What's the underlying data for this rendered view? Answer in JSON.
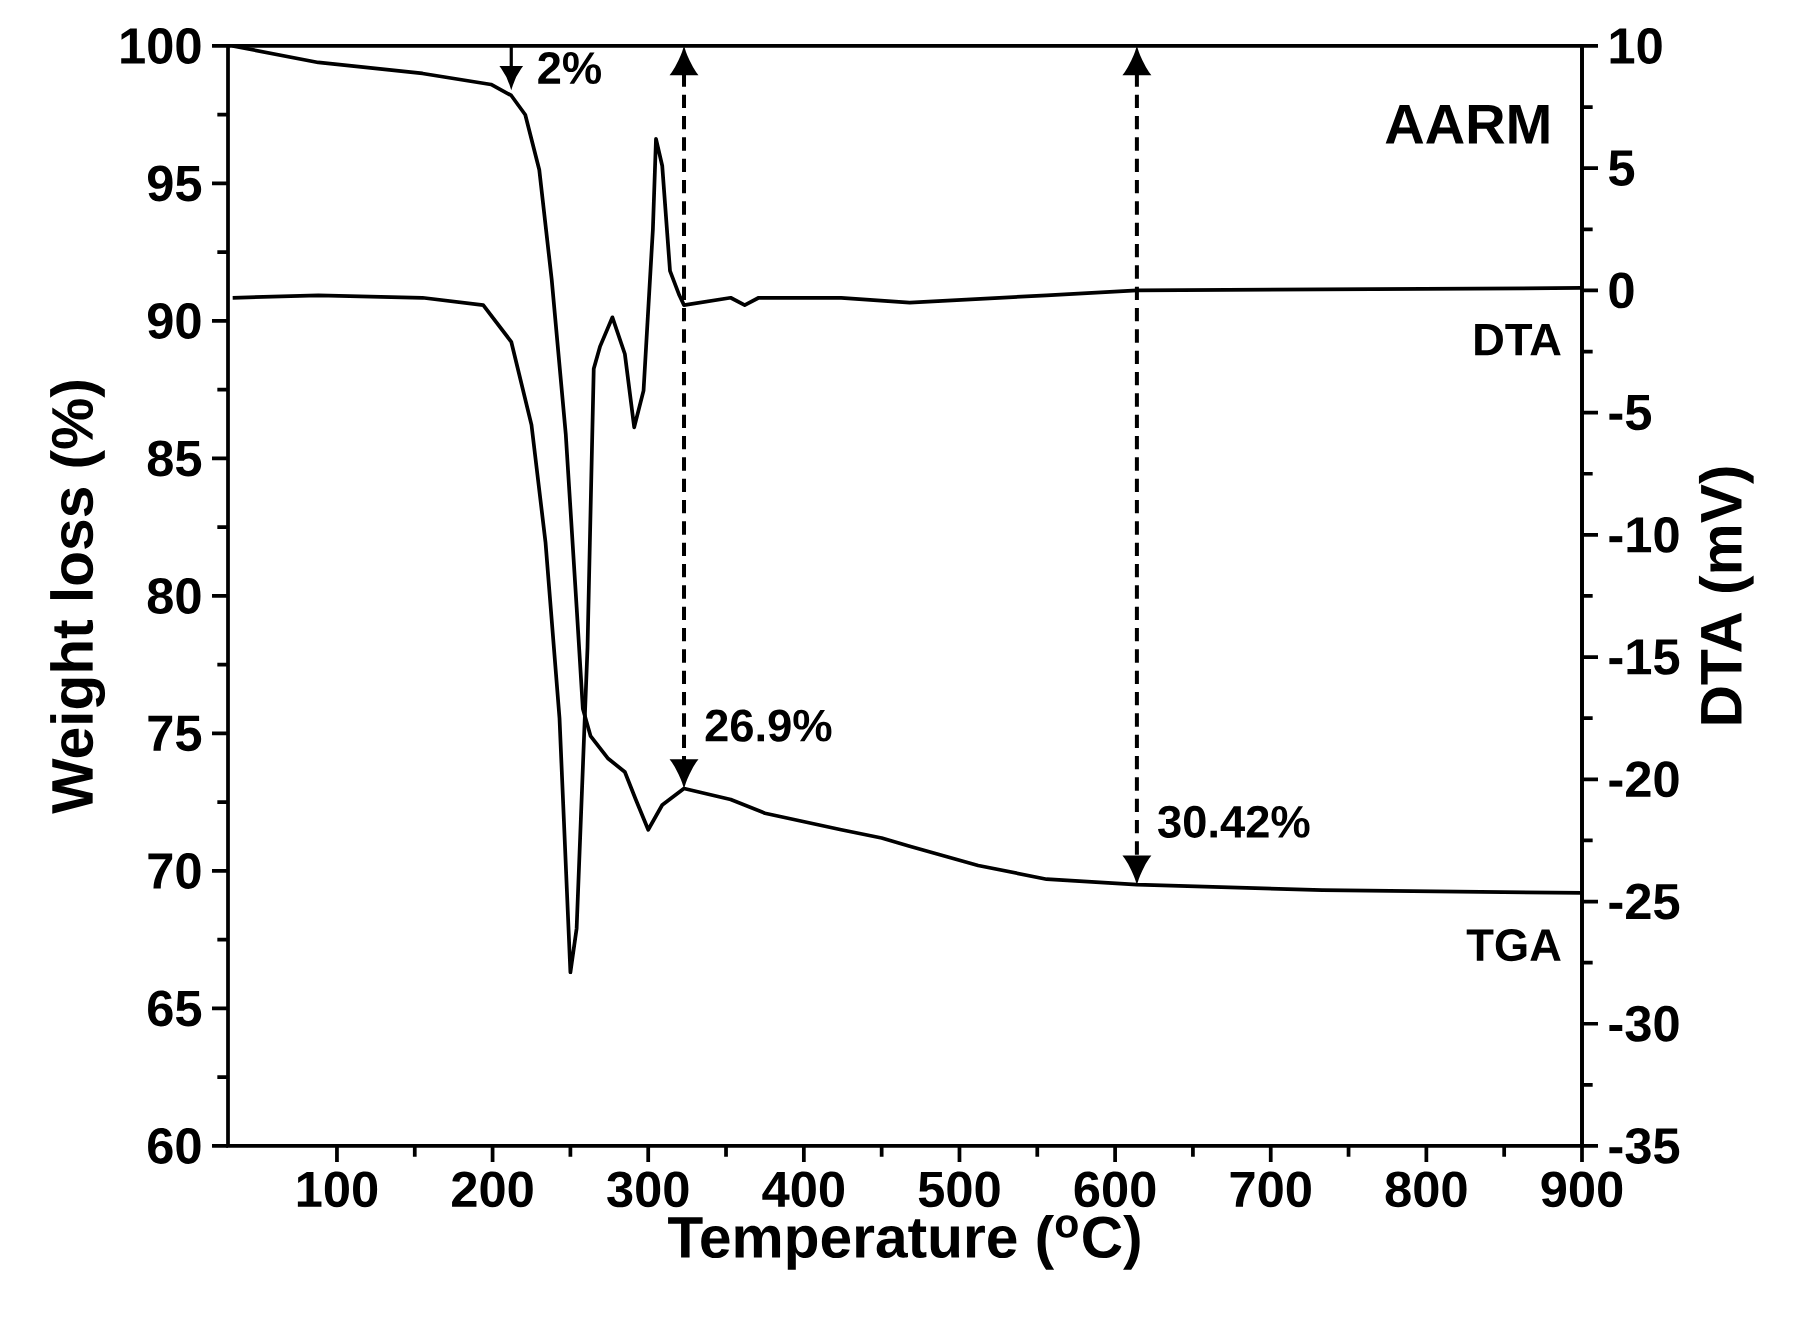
{
  "chart_data": {
    "type": "line",
    "xlabel": "Temperature ($^{o}$C)",
    "ylabel": "Weight loss (%)",
    "y2label": "DTA (mV)",
    "xlim": [
      30,
      900
    ],
    "xticks": [
      100,
      200,
      300,
      400,
      500,
      600,
      700,
      800,
      900
    ],
    "ylim": [
      60,
      100
    ],
    "yticks": [
      60,
      65,
      70,
      75,
      80,
      85,
      90,
      95,
      100
    ],
    "y2lim": [
      -35,
      10
    ],
    "y2ticks": [
      -35,
      -30,
      -25,
      -20,
      -15,
      -10,
      -5,
      0,
      5,
      10
    ],
    "marker": "none",
    "line_style": "solid",
    "series": [
      {
        "name": "TGA",
        "color": "#000000",
        "x": [
          33,
          88,
          155,
          199,
          212,
          221,
          230,
          238,
          247,
          254,
          258,
          263,
          274,
          285,
          292,
          300,
          309,
          323,
          353,
          375,
          424,
          450,
          468,
          512,
          556,
          614,
          733,
          900
        ],
        "values": [
          100,
          99.4,
          99.0,
          98.6,
          98.2,
          97.5,
          95.5,
          91.5,
          85.9,
          79.6,
          75.9,
          74.9,
          74.1,
          73.6,
          72.6,
          71.5,
          72.4,
          73.0,
          72.6,
          72.1,
          71.5,
          71.2,
          70.9,
          70.2,
          69.7,
          69.5,
          69.3,
          69.2
        ]
      },
      {
        "name": "DTA",
        "color": "#000000",
        "axis": "y2",
        "x": [
          33,
          88,
          155,
          194,
          212,
          225,
          234,
          243,
          250,
          254,
          261,
          265,
          269,
          277,
          285,
          291,
          297,
          303,
          305,
          309,
          314,
          320,
          323,
          353,
          362,
          371,
          424,
          468,
          556,
          614,
          900
        ],
        "values": [
          -0.3,
          -0.2,
          -0.3,
          -0.6,
          -2.1,
          -5.5,
          -10.3,
          -17.5,
          -27.9,
          -26.1,
          -14.6,
          -3.2,
          -2.3,
          -1.1,
          -2.6,
          -5.6,
          -4.1,
          2.5,
          6.2,
          5.1,
          0.8,
          -0.2,
          -0.6,
          -0.3,
          -0.6,
          -0.3,
          -0.3,
          -0.5,
          -0.2,
          0,
          0.1
        ]
      }
    ],
    "annotations": [
      "AARM",
      {
        "text": "2%",
        "x": 212,
        "y": 98.4
      },
      {
        "text": "26.9%",
        "x": 323,
        "y": 73.0
      },
      {
        "text": "30.42%",
        "x": 614,
        "y": 69.5
      }
    ]
  }
}
